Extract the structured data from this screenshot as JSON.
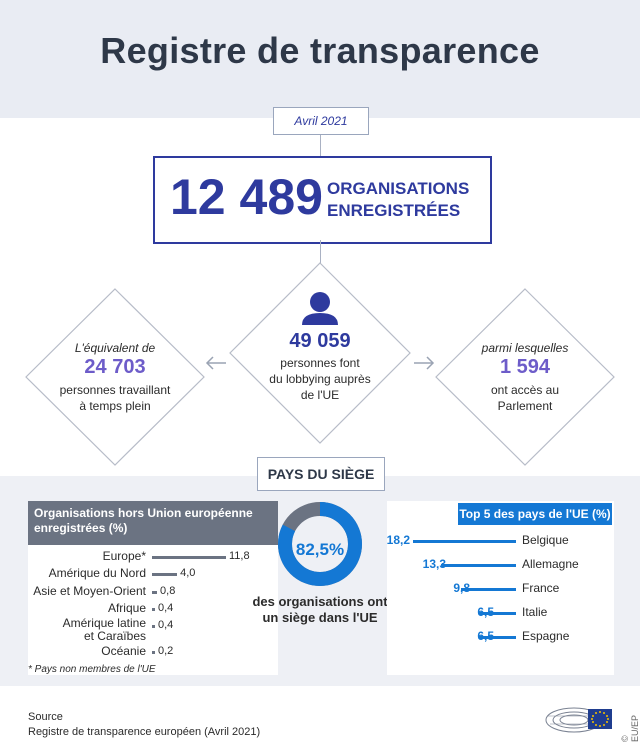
{
  "title": "Registre de transparence",
  "date": "Avril 2021",
  "main": {
    "number": "12 489",
    "label_line1": "ORGANISATIONS",
    "label_line2": "ENREGISTRÉES"
  },
  "left_diamond": {
    "intro": "L'équivalent de",
    "number": "24 703",
    "line1": "personnes travaillant",
    "line2": "à temps plein"
  },
  "center_diamond": {
    "number": "49 059",
    "line1": "personnes font",
    "line2": "du lobbying auprès",
    "line3": "de l'UE"
  },
  "right_diamond": {
    "intro": "parmi lesquelles",
    "number": "1 594",
    "line1": "ont accès au",
    "line2": "Parlement"
  },
  "section_title": "PAYS DU SIÈGE",
  "colors": {
    "navy": "#2e3a9e",
    "purple": "#6d5cc9",
    "blue": "#1478d4",
    "gray_header": "#6b7382"
  },
  "hors_ue": {
    "header_line1": "Organisations hors Union européenne",
    "header_line2": "enregistrées (%)",
    "rows": [
      {
        "label": "Europe*",
        "value": "11,8",
        "num": 11.8
      },
      {
        "label": "Amérique du Nord",
        "value": "4,0",
        "num": 4.0
      },
      {
        "label": "Asie et Moyen-Orient",
        "value": "0,8",
        "num": 0.8
      },
      {
        "label": "Afrique",
        "value": "0,4",
        "num": 0.4
      },
      {
        "label_line1": "Amérique latine",
        "label_line2": "et Caraïbes",
        "value": "0,4",
        "num": 0.4
      },
      {
        "label": "Océanie",
        "value": "0,2",
        "num": 0.2
      }
    ],
    "footnote": "* Pays non membres de l'UE"
  },
  "donut": {
    "percent": "82,5%",
    "value": 82.5,
    "line1": "des organisations ont",
    "line2": "un siège dans l'UE"
  },
  "top5": {
    "header": "Top 5 des pays de l'UE (%)",
    "rows": [
      {
        "value": "18,2",
        "num": 18.2,
        "country": "Belgique"
      },
      {
        "value": "13,3",
        "num": 13.3,
        "country": "Allemagne"
      },
      {
        "value": "9,8",
        "num": 9.8,
        "country": "France"
      },
      {
        "value": "6,5",
        "num": 6.5,
        "country": "Italie"
      },
      {
        "value": "6,5",
        "num": 6.5,
        "country": "Espagne"
      }
    ]
  },
  "source": {
    "line1": "Source",
    "line2": "Registre de transparence européen (Avril 2021)"
  },
  "credit": "© EU/EP"
}
